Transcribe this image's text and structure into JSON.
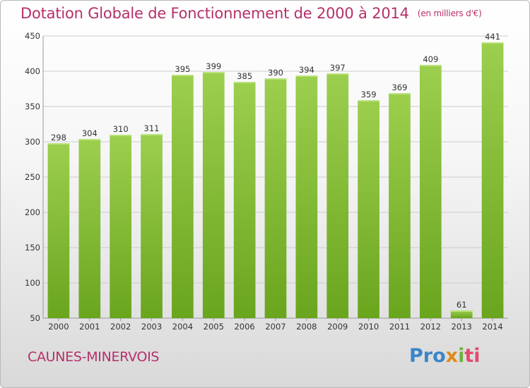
{
  "header": {
    "title": "Dotation Globale de Fonctionnement de 2000 à 2014",
    "unit": "(en milliers d'€)"
  },
  "footer": {
    "commune": "CAUNES-MINERVOIS",
    "logo": [
      "Pro",
      "x",
      "i",
      "ti"
    ]
  },
  "colors": {
    "bar_light": "#9ccf4e",
    "bar_dark": "#6aa51e",
    "title": "#b5306a",
    "grid": "#cccccc"
  },
  "chart_data": {
    "type": "bar",
    "categories": [
      "2000",
      "2001",
      "2002",
      "2003",
      "2004",
      "2005",
      "2006",
      "2007",
      "2008",
      "2009",
      "2010",
      "2011",
      "2012",
      "2013",
      "2014"
    ],
    "values": [
      298,
      304,
      310,
      311,
      395,
      399,
      385,
      390,
      394,
      397,
      359,
      369,
      409,
      61,
      441
    ],
    "title": "Dotation Globale de Fonctionnement de 2000 à 2014",
    "subtitle": "(en milliers d'€)",
    "xlabel": "",
    "ylabel": "",
    "ylim": [
      50,
      450
    ],
    "yticks": [
      "50",
      "100",
      "150",
      "200",
      "250",
      "300",
      "350",
      "400",
      "450"
    ],
    "grid": true,
    "legend": "none"
  }
}
